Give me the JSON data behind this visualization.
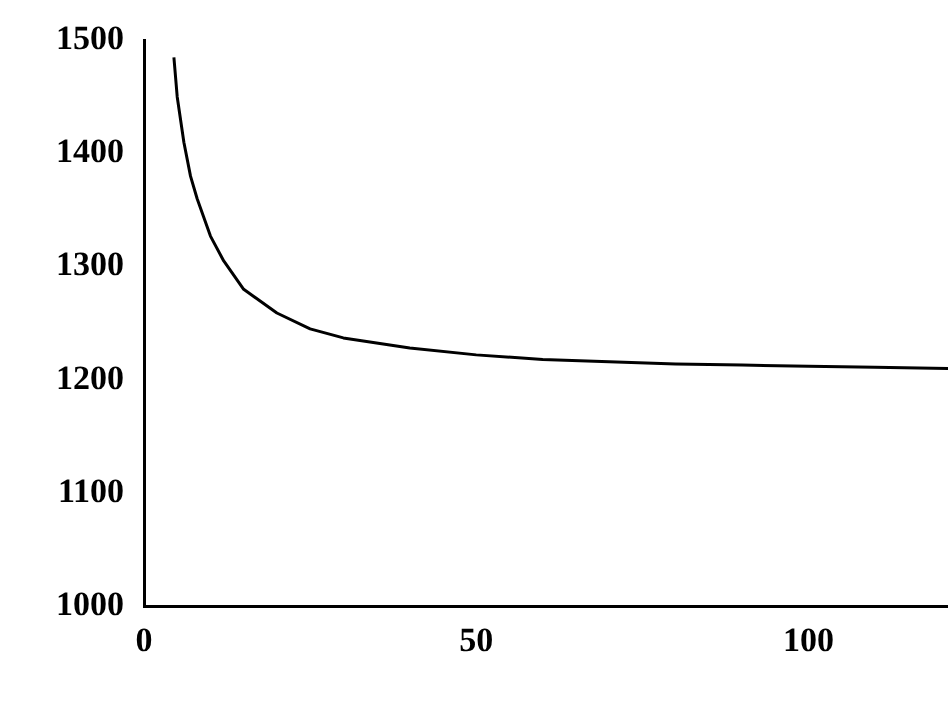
{
  "chart_data": {
    "type": "line",
    "x": [
      4.5,
      5,
      6,
      7,
      8,
      10,
      12,
      15,
      20,
      25,
      30,
      40,
      50,
      60,
      70,
      80,
      90,
      100,
      110,
      121
    ],
    "series": [
      {
        "color": "#000000",
        "values": [
          1485,
          1450,
          1410,
          1380,
          1360,
          1327,
          1305,
          1280,
          1259,
          1245,
          1237,
          1228,
          1222,
          1218,
          1216,
          1214,
          1213,
          1212,
          1211,
          1210
        ]
      }
    ],
    "xlim": [
      0,
      121
    ],
    "xticks": [
      0,
      50,
      100
    ],
    "ylim": [
      1000,
      1500
    ],
    "yticks": [
      1000,
      1100,
      1200,
      1300,
      1400,
      1500
    ],
    "grid": false,
    "legend": false,
    "marker": "none",
    "line_style": "solid"
  }
}
